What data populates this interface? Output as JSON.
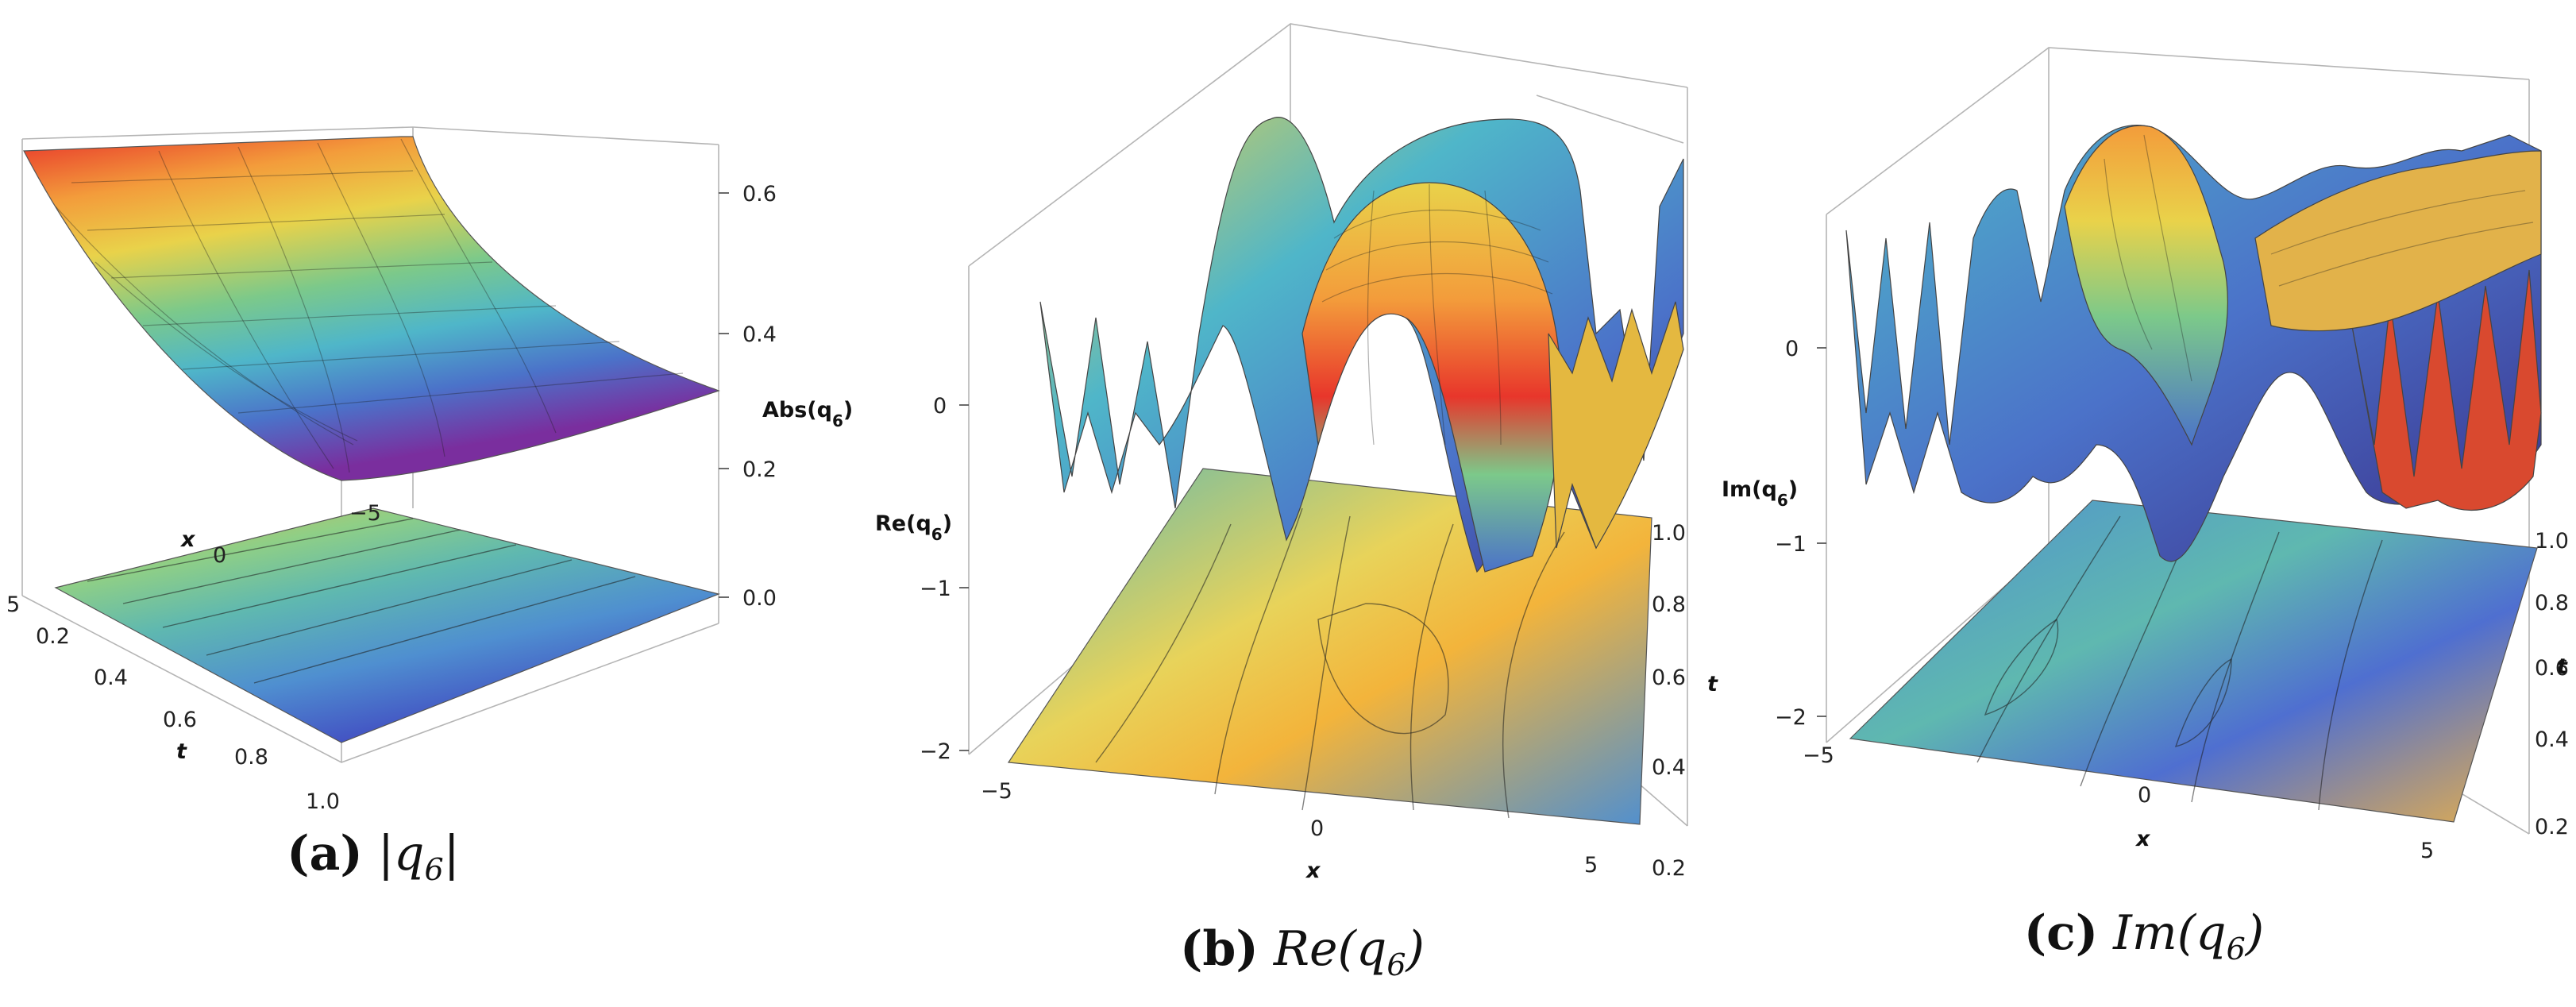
{
  "figure": {
    "panels": [
      {
        "id": "a",
        "caption_tag": "(a)",
        "caption_math": "|q",
        "caption_sub": "6",
        "caption_after": "|",
        "z_axis_label": "Abs(q",
        "z_axis_sub": "6",
        "z_axis_after": ")",
        "z_ticks": [
          "0.6",
          "0.4",
          "0.2",
          "0.0"
        ],
        "x_axis_label": "x",
        "x_ticks": [
          "5",
          "0",
          "−5"
        ],
        "t_axis_label": "t",
        "t_ticks": [
          "0.2",
          "0.4",
          "0.6",
          "0.8",
          "1.0"
        ]
      },
      {
        "id": "b",
        "caption_tag": "(b)",
        "caption_math": "Re(q",
        "caption_sub": "6",
        "caption_after": ")",
        "z_axis_label": "Re(q",
        "z_axis_sub": "6",
        "z_axis_after": ")",
        "z_ticks": [
          "0",
          "−1",
          "−2"
        ],
        "x_axis_label": "x",
        "x_ticks": [
          "−5",
          "0",
          "5"
        ],
        "t_axis_label": "t",
        "t_ticks": [
          "1.0",
          "0.8",
          "0.6",
          "0.4",
          "0.2"
        ],
        "side_label": "Im(q",
        "side_sub": "6",
        "side_after": ")"
      },
      {
        "id": "c",
        "caption_tag": "(c)",
        "caption_math": "Im(q",
        "caption_sub": "6",
        "caption_after": ")",
        "z_ticks": [
          "0",
          "−1",
          "−2"
        ],
        "x_axis_label": "x",
        "x_ticks": [
          "−5",
          "0",
          "5"
        ],
        "t_axis_label": "t",
        "t_ticks": [
          "1.0",
          "0.8",
          "0.6",
          "0.4",
          "0.2"
        ]
      }
    ]
  },
  "chart_data": [
    {
      "type": "surface3d",
      "z_ticks": [
        0.6,
        0.4,
        0.2,
        0.0
      ],
      "x_ticks": [
        5,
        0,
        -5
      ],
      "t_ticks": [
        0.2,
        0.4,
        0.6,
        0.8,
        1.0
      ],
      "x_range": [
        -5,
        5
      ],
      "t_range": [
        0.2,
        1.0
      ],
      "z_range": [
        -0.05,
        0.65
      ],
      "surface_corner_values": {
        "t_0.2": 0.62,
        "t_1.0": 0.31
      },
      "contour_projection": true,
      "colormap": "rainbow"
    },
    {
      "type": "surface3d",
      "z_ticks": [
        0,
        -1,
        -2
      ],
      "x_ticks": [
        -5,
        0,
        5
      ],
      "t_ticks": [
        1.0,
        0.8,
        0.6,
        0.4,
        0.2
      ],
      "x_range": [
        -5,
        5
      ],
      "t_range": [
        0.2,
        1.0
      ],
      "z_range": [
        -2.1,
        0.8
      ],
      "contour_projection": true,
      "colormap": "rainbow"
    },
    {
      "type": "surface3d",
      "z_ticks": [
        0,
        -1,
        -2
      ],
      "x_ticks": [
        -5,
        0,
        5
      ],
      "t_ticks": [
        1.0,
        0.8,
        0.6,
        0.4,
        0.2
      ],
      "x_range": [
        -5,
        5
      ],
      "t_range": [
        0.2,
        1.0
      ],
      "z_range": [
        -2.1,
        0.5
      ],
      "contour_projection": true,
      "colormap": "rainbow"
    }
  ],
  "colors": {
    "red": "#e8362b",
    "orange": "#f39c3b",
    "yellow": "#e9d24a",
    "green": "#7cc98a",
    "cyan": "#4fb6c9",
    "blue": "#4b72c9",
    "indigo": "#4a3fb0",
    "purple": "#6b2f9a",
    "contour_yellow": "#e8d35a",
    "contour_teal": "#5fb8b0",
    "contour_blue": "#4f8fd0"
  }
}
